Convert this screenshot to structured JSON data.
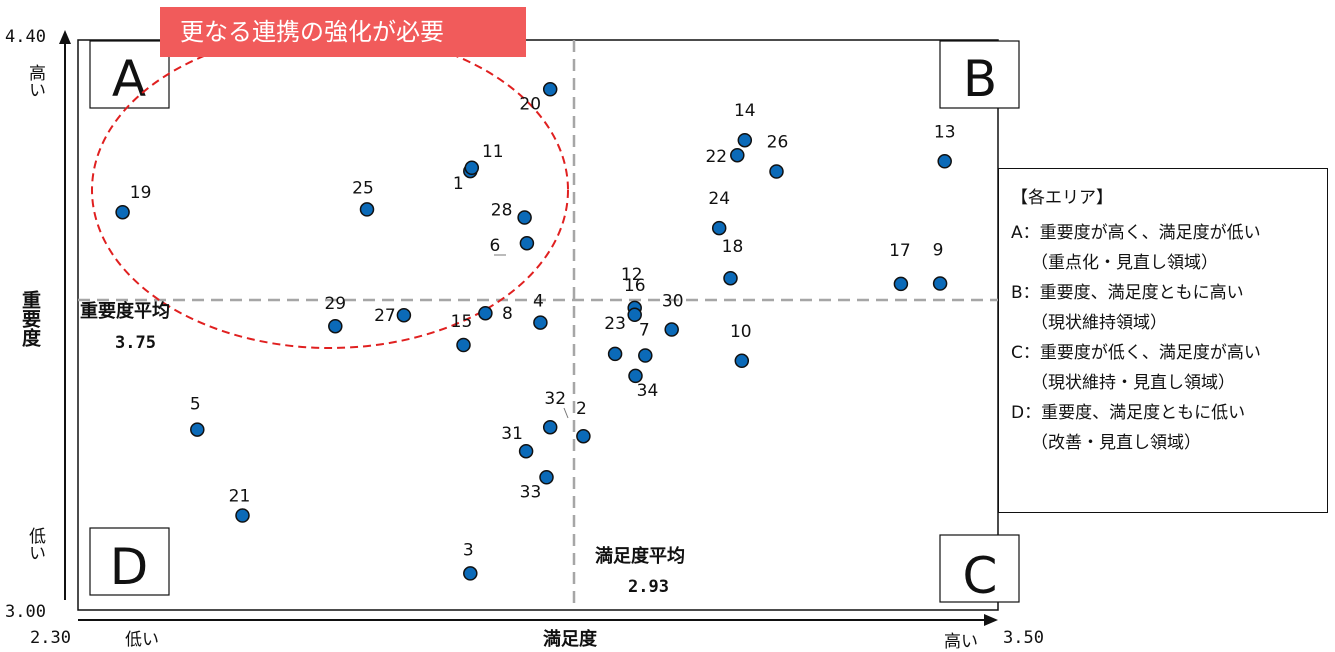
{
  "chart_data": {
    "type": "scatter",
    "xlabel": "満足度",
    "ylabel": "重要度",
    "xlim": [
      2.3,
      3.5
    ],
    "ylim": [
      3.0,
      4.4
    ],
    "x_min_label": "2.30",
    "x_max_label": "3.50",
    "y_min_label": "3.00",
    "y_max_label": "4.40",
    "x_low_label": "低い",
    "x_high_label": "高い",
    "y_low_label": "低い",
    "y_high_label": "高い",
    "x_avg": 2.93,
    "y_avg": 3.75,
    "x_avg_label": "満足度平均",
    "x_avg_value": "2.93",
    "y_avg_label": "重要度平均",
    "y_avg_value": "3.75",
    "quadrants": [
      "A",
      "B",
      "C",
      "D"
    ],
    "points": [
      {
        "label": "1",
        "x": 2.791,
        "y": 4.078
      },
      {
        "label": "2",
        "x": 2.941,
        "y": 3.427
      },
      {
        "label": "3",
        "x": 2.791,
        "y": 3.09
      },
      {
        "label": "4",
        "x": 2.884,
        "y": 3.706
      },
      {
        "label": "5",
        "x": 2.429,
        "y": 3.443
      },
      {
        "label": "6",
        "x": 2.866,
        "y": 3.901
      },
      {
        "label": "7",
        "x": 3.023,
        "y": 3.625
      },
      {
        "label": "8",
        "x": 2.811,
        "y": 3.729
      },
      {
        "label": "9",
        "x": 3.414,
        "y": 3.802
      },
      {
        "label": "10",
        "x": 3.151,
        "y": 3.612
      },
      {
        "label": "11",
        "x": 2.793,
        "y": 4.086
      },
      {
        "label": "12",
        "x": 3.009,
        "y": 3.742
      },
      {
        "label": "13",
        "x": 3.42,
        "y": 4.102
      },
      {
        "label": "14",
        "x": 3.155,
        "y": 4.154
      },
      {
        "label": "15",
        "x": 2.782,
        "y": 3.651
      },
      {
        "label": "16",
        "x": 3.009,
        "y": 3.725
      },
      {
        "label": "17",
        "x": 3.362,
        "y": 3.801
      },
      {
        "label": "18",
        "x": 3.136,
        "y": 3.815
      },
      {
        "label": "19",
        "x": 2.33,
        "y": 3.977
      },
      {
        "label": "20",
        "x": 2.897,
        "y": 4.279
      },
      {
        "label": "21",
        "x": 2.489,
        "y": 3.232
      },
      {
        "label": "22",
        "x": 3.145,
        "y": 4.117
      },
      {
        "label": "23",
        "x": 2.983,
        "y": 3.629
      },
      {
        "label": "24",
        "x": 3.121,
        "y": 3.938
      },
      {
        "label": "25",
        "x": 2.654,
        "y": 3.984
      },
      {
        "label": "26",
        "x": 3.197,
        "y": 4.077
      },
      {
        "label": "27",
        "x": 2.703,
        "y": 3.724
      },
      {
        "label": "28",
        "x": 2.863,
        "y": 3.964
      },
      {
        "label": "29",
        "x": 2.612,
        "y": 3.697
      },
      {
        "label": "30",
        "x": 3.058,
        "y": 3.689
      },
      {
        "label": "31",
        "x": 2.865,
        "y": 3.39
      },
      {
        "label": "32",
        "x": 2.897,
        "y": 3.449
      },
      {
        "label": "33",
        "x": 2.892,
        "y": 3.326
      },
      {
        "label": "34",
        "x": 3.01,
        "y": 3.575
      }
    ],
    "highlight": {
      "label": "更なる連携の強化が必要",
      "color": "#f15b5b"
    },
    "legend": {
      "title": "【各エリア】",
      "entries": [
        {
          "head": "A：重要度が高く、満足度が低い",
          "sub": "（重点化・見直し領域）"
        },
        {
          "head": "B：重要度、満足度ともに高い",
          "sub": "（現状維持領域）"
        },
        {
          "head": "C：重要度が低く、満足度が高い",
          "sub": "（現状維持・見直し領域）"
        },
        {
          "head": "D：重要度、満足度ともに低い",
          "sub": "（改善・見直し領域）"
        }
      ]
    },
    "colors": {
      "point_fill": "#0b6ab8",
      "point_stroke": "#111111",
      "avg_line": "#a6a6a6",
      "ellipse": "#e02020"
    }
  }
}
